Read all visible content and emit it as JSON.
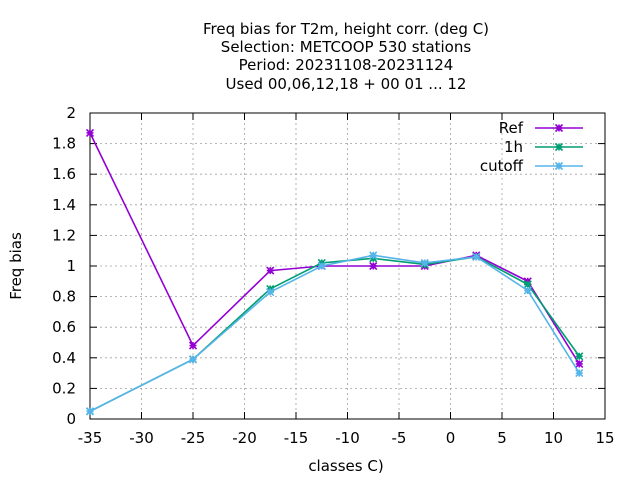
{
  "chart_data": {
    "type": "line",
    "title_lines": [
      "Freq bias  for T2m, height corr. (deg C)",
      "Selection: METCOOP    530 stations",
      "Period: 20231108-20231124",
      "Used  00,06,12,18 + 00 01 ... 12"
    ],
    "xlabel": "classes C)",
    "ylabel": "Freq bias",
    "xlim": [
      -35,
      15
    ],
    "ylim": [
      0,
      2
    ],
    "xticks": [
      -35,
      -30,
      -25,
      -20,
      -15,
      -10,
      -5,
      0,
      5,
      10,
      15
    ],
    "yticks": [
      0,
      0.2,
      0.4,
      0.6,
      0.8,
      1,
      1.2,
      1.4,
      1.6,
      1.8,
      2
    ],
    "grid": true,
    "legend_position": "top-right",
    "series": [
      {
        "name": "Ref",
        "color": "#9400d3",
        "x": [
          -35,
          -25,
          -17.5,
          -12.5,
          -7.5,
          -2.5,
          2.5,
          7.5,
          12.5
        ],
        "y": [
          1.87,
          0.48,
          0.97,
          1.0,
          1.0,
          1.0,
          1.07,
          0.9,
          0.36
        ]
      },
      {
        "name": "1h",
        "color": "#009e73",
        "x": [
          -35,
          -25,
          -17.5,
          -12.5,
          -7.5,
          -2.5,
          2.5,
          7.5,
          12.5
        ],
        "y": [
          0.05,
          0.39,
          0.85,
          1.02,
          1.05,
          1.01,
          1.06,
          0.88,
          0.41
        ]
      },
      {
        "name": "cutoff",
        "color": "#56b4e9",
        "x": [
          -35,
          -25,
          -17.5,
          -12.5,
          -7.5,
          -2.5,
          2.5,
          7.5,
          12.5
        ],
        "y": [
          0.05,
          0.39,
          0.83,
          1.0,
          1.07,
          1.02,
          1.06,
          0.84,
          0.3
        ]
      }
    ]
  }
}
